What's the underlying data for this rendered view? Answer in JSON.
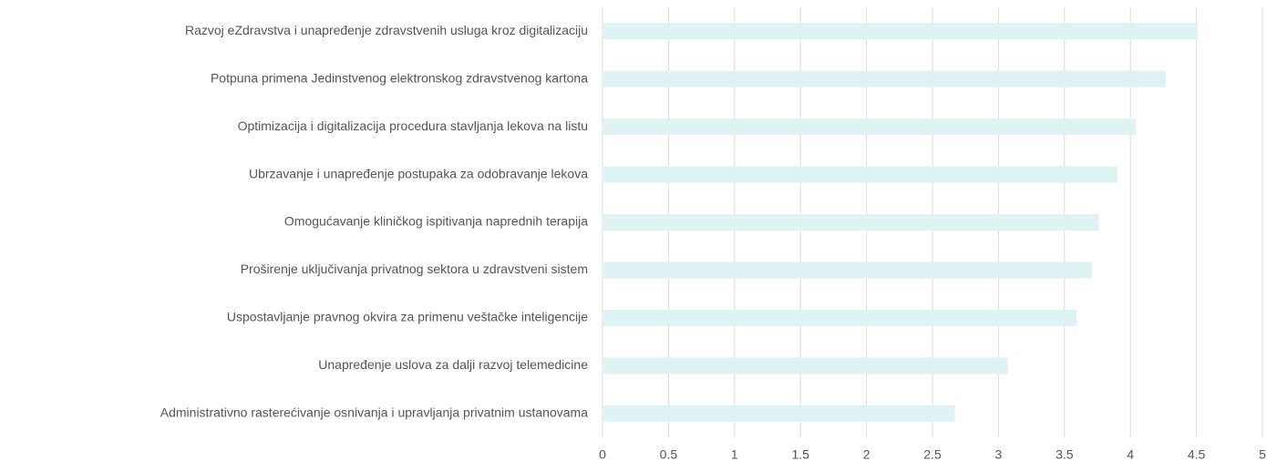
{
  "chart_data": {
    "type": "bar",
    "orientation": "horizontal",
    "categories": [
      "Razvoj eZdravstva i unapređenje zdravstvenih usluga kroz digitalizaciju",
      "Potpuna primena Jedinstvenog elektronskog zdravstvenog kartona",
      "Optimizacija i digitalizacija procedura stavljanja lekova na listu",
      "Ubrzavanje i unapređenje postupaka za odobravanje lekova",
      "Omogućavanje kliničkog ispitivanja naprednih terapija",
      "Proširenje uključivanja privatnog sektora u zdravstveni sistem",
      "Uspostavljanje pravnog okvira za primenu veštačke inteligencije",
      "Unapređenje uslova za dalji razvoj telemedicine",
      "Administrativno rasterećivanje osnivanja i upravljanja privatnim ustanovama"
    ],
    "values": [
      4.51,
      4.27,
      4.04,
      3.9,
      3.76,
      3.71,
      3.59,
      3.07,
      2.67
    ],
    "color": "#dff2f4",
    "xlim": [
      0,
      5
    ],
    "xticks": [
      0,
      0.5,
      1,
      1.5,
      2,
      2.5,
      3,
      3.5,
      4,
      4.5,
      5
    ],
    "grid": true
  }
}
